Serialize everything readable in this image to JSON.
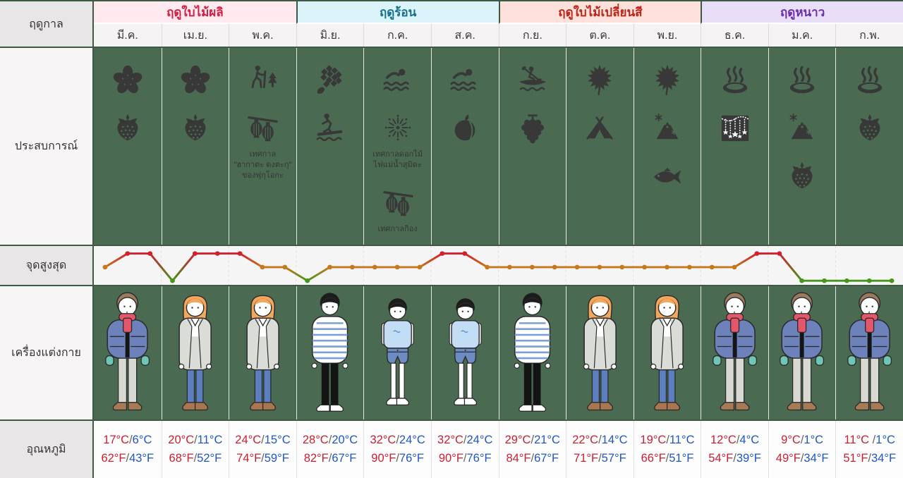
{
  "row_labels": {
    "season": "ฤดูกาล",
    "experience": "ประสบการณ์",
    "peak": "จุดสูงสุด",
    "clothing": "เครื่องแต่งกาย",
    "temperature": "อุณหภูมิ"
  },
  "seasons": [
    {
      "label": "ฤดูใบไม้ผลิ",
      "months": 3,
      "bg": "#fde9ee",
      "color": "#d31f45"
    },
    {
      "label": "ฤดูร้อน",
      "months": 3,
      "bg": "#daf4f9",
      "color": "#176f8e"
    },
    {
      "label": "ฤดูใบไม้เปลี่ยนสี",
      "months": 3,
      "bg": "#fde1da",
      "color": "#bf2317"
    },
    {
      "label": "ฤดูหนาว",
      "months": 3,
      "bg": "#e9def8",
      "color": "#6a2fa8"
    }
  ],
  "months": [
    {
      "label": "มี.ค.",
      "experiences": [
        {
          "icon": "cherry-blossom"
        },
        {
          "icon": "strawberry"
        }
      ],
      "outfit": "winter-jacket",
      "temp": {
        "c_high": "17°C",
        "c_low": "6°C",
        "f_high": "62°F",
        "f_low": "43°F"
      }
    },
    {
      "label": "เม.ย.",
      "experiences": [
        {
          "icon": "cherry-blossom"
        },
        {
          "icon": "strawberry"
        }
      ],
      "outfit": "light-coat",
      "temp": {
        "c_high": "20°C",
        "c_low": "11°C",
        "f_high": "68°F",
        "f_low": "52°F"
      }
    },
    {
      "label": "พ.ค.",
      "experiences": [
        {
          "icon": "hiking"
        },
        {
          "icon": "lanterns",
          "caption": "เทศกาล\n\"ฮากาตะ ดงตะกุ\"\nของฟุกุโอกะ"
        }
      ],
      "outfit": "light-coat",
      "temp": {
        "c_high": "24°C",
        "c_low": "15°C",
        "f_high": "74°F",
        "f_low": "59°F"
      }
    },
    {
      "label": "มิ.ย.",
      "experiences": [
        {
          "icon": "hydrangea"
        },
        {
          "icon": "surfing"
        }
      ],
      "outfit": "striped-shirt",
      "temp": {
        "c_high": "28°C",
        "c_low": "20°C",
        "f_high": "82°F",
        "f_low": "67°F"
      }
    },
    {
      "label": "ก.ค.",
      "experiences": [
        {
          "icon": "swimming"
        },
        {
          "icon": "fireworks",
          "caption": "เทศกาลดอกไม้\nไฟแม่น้ำสุมิดะ"
        },
        {
          "icon": "lanterns",
          "caption": "เทศกาลกิอง"
        }
      ],
      "outfit": "tshirt-shorts",
      "temp": {
        "c_high": "32°C",
        "c_low": "24°C",
        "f_high": "90°F",
        "f_low": "76°F"
      }
    },
    {
      "label": "ส.ค.",
      "experiences": [
        {
          "icon": "swimming"
        },
        {
          "icon": "peach"
        }
      ],
      "outfit": "tshirt-shorts",
      "temp": {
        "c_high": "32°C",
        "c_low": "24°C",
        "f_high": "90°F",
        "f_low": "76°F"
      }
    },
    {
      "label": "ก.ย.",
      "experiences": [
        {
          "icon": "canoe"
        },
        {
          "icon": "grapes"
        }
      ],
      "outfit": "striped-shirt",
      "temp": {
        "c_high": "29°C",
        "c_low": "21°C",
        "f_high": "84°F",
        "f_low": "67°F"
      }
    },
    {
      "label": "ต.ค.",
      "experiences": [
        {
          "icon": "maple-leaf"
        },
        {
          "icon": "tent"
        }
      ],
      "outfit": "light-coat",
      "temp": {
        "c_high": "22°C",
        "c_low": "14°C",
        "f_high": "71°F",
        "f_low": "57°F"
      }
    },
    {
      "label": "พ.ย.",
      "experiences": [
        {
          "icon": "maple-leaf"
        },
        {
          "icon": "fuji-snow"
        },
        {
          "icon": "fish"
        }
      ],
      "outfit": "light-coat",
      "temp": {
        "c_high": "19°C",
        "c_low": "11°C",
        "f_high": "66°F",
        "f_low": "51°F"
      }
    },
    {
      "label": "ธ.ค.",
      "experiences": [
        {
          "icon": "onsen"
        },
        {
          "icon": "illumination"
        }
      ],
      "outfit": "winter-jacket",
      "temp": {
        "c_high": "12°C",
        "c_low": "4°C",
        "f_high": "54°F",
        "f_low": "39°F"
      }
    },
    {
      "label": "ม.ค.",
      "experiences": [
        {
          "icon": "onsen"
        },
        {
          "icon": "fuji-snow"
        },
        {
          "icon": "strawberry"
        }
      ],
      "outfit": "winter-jacket",
      "temp": {
        "c_high": "9°C",
        "c_low": "1°C",
        "f_high": "49°F",
        "f_low": "34°F"
      }
    },
    {
      "label": "ก.พ.",
      "experiences": [
        {
          "icon": "onsen"
        },
        {
          "icon": "strawberry"
        }
      ],
      "outfit": "winter-jacket",
      "temp": {
        "c_high": "11°C ",
        "c_low": "1°C",
        "f_high": "51°F",
        "f_low": "34°F"
      }
    }
  ],
  "chart_data": {
    "type": "line",
    "title": "จุดสูงสุด",
    "x_months": [
      "มี.ค.",
      "เม.ย.",
      "พ.ค.",
      "มิ.ย.",
      "ก.ค.",
      "ส.ค.",
      "ก.ย.",
      "ต.ค.",
      "พ.ย.",
      "ธ.ค.",
      "ม.ค.",
      "ก.พ."
    ],
    "points_per_month": 3,
    "levels": [
      "mid",
      "high",
      "high",
      "low",
      "high",
      "high",
      "high",
      "mid",
      "mid",
      "low",
      "mid",
      "mid",
      "mid",
      "mid",
      "mid",
      "high",
      "high",
      "mid",
      "mid",
      "mid",
      "mid",
      "mid",
      "mid",
      "mid",
      "mid",
      "mid",
      "mid",
      "mid",
      "mid",
      "high",
      "high",
      "low",
      "low",
      "low",
      "low",
      "low"
    ],
    "level_values": {
      "high": 3,
      "mid": 2,
      "low": 1
    },
    "level_colors": {
      "high": "#d2202e",
      "mid": "#c4791d",
      "low": "#44961c"
    },
    "ylim": [
      0,
      4
    ],
    "grid": "dashed-month-separators",
    "legend": "none"
  },
  "colors": {
    "panel_green": "#4a6b52",
    "grid_border": "#3e5a45",
    "temp_high": "#cf1f2e",
    "temp_low": "#1e56cc"
  }
}
